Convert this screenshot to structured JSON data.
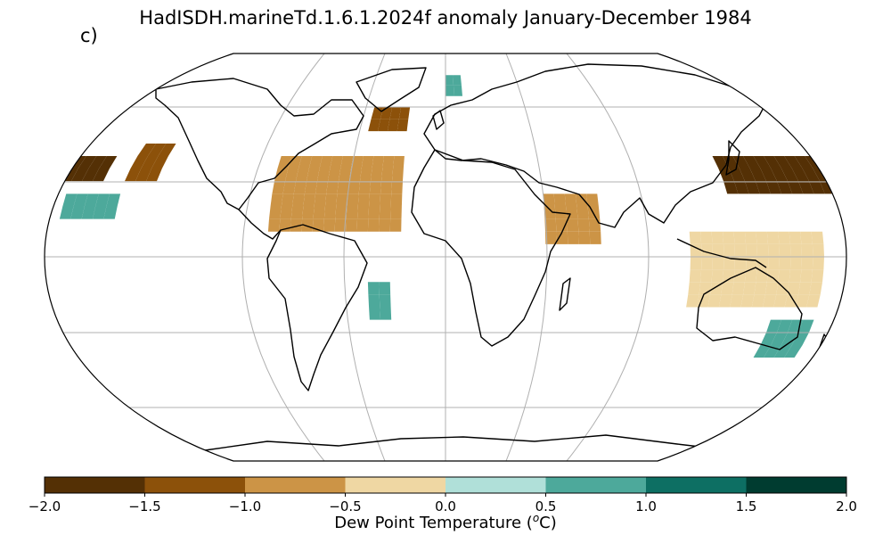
{
  "title": "HadISDH.marineTd.1.6.1.2024f anomaly January-December 1984",
  "panel_label": "c)",
  "colorbar": {
    "label_prefix": "Dew Point Temperature (",
    "label_unit": "o",
    "label_suffix": "C)",
    "ticks": [
      "−2.0",
      "−1.5",
      "−1.0",
      "−0.5",
      "0.0",
      "0.5",
      "1.0",
      "1.5",
      "2.0"
    ],
    "colors": [
      "#543005",
      "#8c510a",
      "#cc9446",
      "#efd7a3",
      "#b0e0d9",
      "#4da99b",
      "#0d6f63",
      "#003c30"
    ],
    "range": [
      -2.0,
      2.0
    ]
  },
  "map": {
    "projection": "Robinson",
    "grid_lat": [
      -60,
      -30,
      0,
      30,
      60
    ],
    "grid_lon": [
      -120,
      -60,
      0,
      60,
      120
    ],
    "cell_deg": 5
  },
  "chart_data": {
    "type": "heatmap",
    "title": "HadISDH.marineTd.1.6.1.2024f anomaly January-December 1984",
    "colorbar_label": "Dew Point Temperature (oC)",
    "vmin": -2.0,
    "vmax": 2.0,
    "levels": [
      -2.0,
      -1.5,
      -1.0,
      -0.5,
      0.0,
      0.5,
      1.0,
      1.5,
      2.0
    ],
    "grid_cells": [
      {
        "lon_range": [
          130,
          180
        ],
        "lat_range": [
          25,
          40
        ],
        "anomaly": -1.7
      },
      {
        "lon_range": [
          -180,
          -160
        ],
        "lat_range": [
          30,
          40
        ],
        "anomaly": -1.7
      },
      {
        "lon_range": [
          -150,
          -135
        ],
        "lat_range": [
          30,
          45
        ],
        "anomaly": -1.2
      },
      {
        "lon_range": [
          -175,
          -150
        ],
        "lat_range": [
          15,
          25
        ],
        "anomaly": 0.7
      },
      {
        "lon_range": [
          -80,
          -20
        ],
        "lat_range": [
          10,
          40
        ],
        "anomaly": -0.8
      },
      {
        "lon_range": [
          -40,
          -20
        ],
        "lat_range": [
          50,
          60
        ],
        "anomaly": -1.3
      },
      {
        "lon_range": [
          0,
          10
        ],
        "lat_range": [
          65,
          75
        ],
        "anomaly": 0.8
      },
      {
        "lon_range": [
          -35,
          -25
        ],
        "lat_range": [
          -25,
          -10
        ],
        "anomaly": 0.7
      },
      {
        "lon_range": [
          45,
          70
        ],
        "lat_range": [
          5,
          25
        ],
        "anomaly": -0.9
      },
      {
        "lon_range": [
          150,
          170
        ],
        "lat_range": [
          -40,
          -25
        ],
        "anomaly": 0.8
      },
      {
        "lon_range": [
          110,
          170
        ],
        "lat_range": [
          -20,
          10
        ],
        "anomaly": -0.3
      }
    ]
  }
}
